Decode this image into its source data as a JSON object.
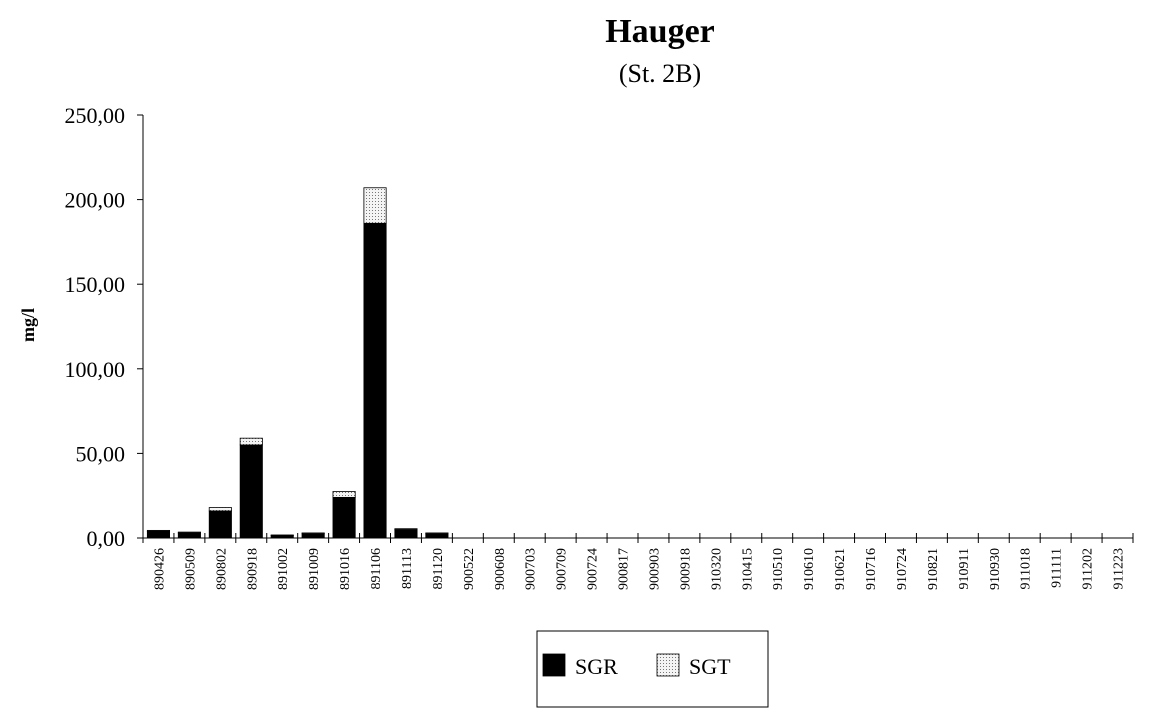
{
  "chart_data": {
    "type": "stacked_bar",
    "title": "Hauger",
    "subtitle": "(St. 2B)",
    "y_label": "mg/l",
    "categories": [
      "890426",
      "890509",
      "890802",
      "890918",
      "891002",
      "891009",
      "891016",
      "891106",
      "891113",
      "891120",
      "900522",
      "900608",
      "900703",
      "900709",
      "900724",
      "900817",
      "900903",
      "900918",
      "910320",
      "910415",
      "910510",
      "910610",
      "910621",
      "910716",
      "910724",
      "910821",
      "910911",
      "910930",
      "911018",
      "911111",
      "911202",
      "911223"
    ],
    "series": [
      {
        "name": "SGR",
        "color": "#000000",
        "values": [
          4,
          3,
          16,
          55,
          1.5,
          2.5,
          24,
          186,
          5,
          2.5,
          0,
          0,
          0,
          0,
          0,
          0,
          0,
          0,
          0,
          0,
          0,
          0,
          0,
          0,
          0,
          0,
          0,
          0,
          0,
          0,
          0,
          0
        ]
      },
      {
        "name": "SGT",
        "color": "#d8d8d8",
        "values": [
          0.5,
          0.5,
          2,
          4,
          0.3,
          0.5,
          3.5,
          21,
          0.5,
          0.5,
          0,
          0,
          0,
          0,
          0,
          0,
          0,
          0,
          0,
          0,
          0,
          0,
          0,
          0,
          0,
          0,
          0,
          0,
          0,
          0,
          0,
          0
        ]
      }
    ],
    "ylim": [
      0,
      250
    ],
    "yticks": [
      {
        "value": 0,
        "label": "0,00"
      },
      {
        "value": 50,
        "label": "50,00"
      },
      {
        "value": 100,
        "label": "100,00"
      },
      {
        "value": 150,
        "label": "150,00"
      },
      {
        "value": 200,
        "label": "200,00"
      },
      {
        "value": 250,
        "label": "250,00"
      }
    ],
    "legend": "bottom"
  }
}
